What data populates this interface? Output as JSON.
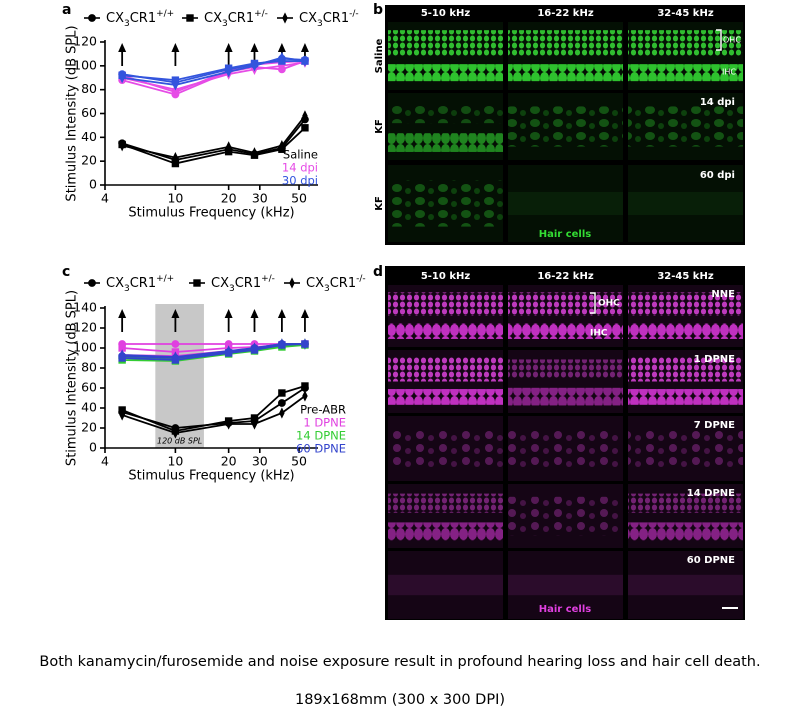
{
  "chart_data": [
    {
      "type": "line",
      "letter": "a",
      "xscale": "log",
      "xlabel": "Stimulus Frequency (kHz)",
      "ylabel": "Stimulus Intensity (dB SPL)",
      "xlim": [
        4,
        64
      ],
      "xticks": [
        4,
        10,
        20,
        30,
        50
      ],
      "ylim": [
        0,
        120
      ],
      "yticks": [
        0,
        20,
        40,
        60,
        80,
        100,
        120
      ],
      "x": [
        5,
        10,
        20,
        28,
        40,
        54
      ],
      "genotypes": [
        {
          "marker": "circle",
          "label": {
            "base": "CX",
            "sub": "3",
            "mid": "CR1",
            "sup": "+/+"
          }
        },
        {
          "marker": "square",
          "label": {
            "base": "CX",
            "sub": "3",
            "mid": "CR1",
            "sup": "+/-"
          }
        },
        {
          "marker": "diamond",
          "label": {
            "base": "CX",
            "sub": "3",
            "mid": "CR1",
            "sup": "-/-"
          }
        }
      ],
      "conditions": [
        {
          "label": "Saline",
          "color": "#000000"
        },
        {
          "label": "14 dpi",
          "color": "#e64ce6"
        },
        {
          "label": "30 dpi",
          "color": "#3355dd"
        }
      ],
      "series": [
        {
          "color": "#000000",
          "marker": "circle",
          "values": [
            35,
            21,
            30,
            26,
            31,
            55
          ]
        },
        {
          "color": "#000000",
          "marker": "square",
          "values": [
            34,
            18,
            28,
            25,
            30,
            48
          ]
        },
        {
          "color": "#000000",
          "marker": "diamond",
          "values": [
            33,
            23,
            32,
            27,
            33,
            58
          ]
        },
        {
          "color": "#e64ce6",
          "marker": "circle",
          "values": [
            88,
            76,
            95,
            99,
            97,
            104
          ]
        },
        {
          "color": "#e64ce6",
          "marker": "square",
          "values": [
            92,
            78,
            96,
            101,
            103,
            104
          ]
        },
        {
          "color": "#e64ce6",
          "marker": "diamond",
          "values": [
            90,
            80,
            93,
            97,
            100,
            103
          ]
        },
        {
          "color": "#3355dd",
          "marker": "circle",
          "values": [
            93,
            86,
            97,
            101,
            106,
            105
          ]
        },
        {
          "color": "#3355dd",
          "marker": "square",
          "values": [
            92,
            88,
            98,
            102,
            104,
            104
          ]
        },
        {
          "color": "#3355dd",
          "marker": "diamond",
          "values": [
            90,
            84,
            95,
            100,
            107,
            104
          ]
        }
      ]
    },
    {
      "type": "line",
      "letter": "c",
      "xscale": "log",
      "xlabel": "Stimulus Frequency (kHz)",
      "ylabel": "Stimulus Intensity (dB SPL)",
      "xlim": [
        4,
        64
      ],
      "xticks": [
        4,
        10,
        20,
        30,
        50
      ],
      "ylim": [
        0,
        140
      ],
      "yticks": [
        0,
        20,
        40,
        60,
        80,
        100,
        120,
        140
      ],
      "x": [
        5,
        10,
        20,
        28,
        40,
        54
      ],
      "shade": [
        7.7,
        14.5
      ],
      "shade_label": "120 dB SPL",
      "genotypes": [
        {
          "marker": "circle",
          "label": {
            "base": "CX",
            "sub": "3",
            "mid": "CR1",
            "sup": "+/+"
          }
        },
        {
          "marker": "square",
          "label": {
            "base": "CX",
            "sub": "3",
            "mid": "CR1",
            "sup": "+/-"
          }
        },
        {
          "marker": "diamond",
          "label": {
            "base": "CX",
            "sub": "3",
            "mid": "CR1",
            "sup": "-/-"
          }
        }
      ],
      "conditions": [
        {
          "label": "Pre-ABR",
          "color": "#000000"
        },
        {
          "label": "1 DPNE",
          "color": "#e040e0"
        },
        {
          "label": "14 DPNE",
          "color": "#33cc33"
        },
        {
          "label": "60 DPNE",
          "color": "#3344cc"
        }
      ],
      "series": [
        {
          "color": "#000000",
          "marker": "circle",
          "values": [
            36,
            20,
            25,
            27,
            45,
            60
          ]
        },
        {
          "color": "#000000",
          "marker": "square",
          "values": [
            38,
            17,
            27,
            30,
            55,
            62
          ]
        },
        {
          "color": "#000000",
          "marker": "diamond",
          "values": [
            33,
            15,
            24,
            24,
            35,
            52
          ]
        },
        {
          "color": "#e040e0",
          "marker": "circle",
          "values": [
            104,
            104,
            104,
            104,
            104,
            104
          ]
        },
        {
          "color": "#e040e0",
          "marker": "square",
          "values": [
            100,
            96,
            100,
            101,
            103,
            104
          ]
        },
        {
          "color": "#e040e0",
          "marker": "diamond",
          "values": [
            93,
            92,
            97,
            99,
            104,
            104
          ]
        },
        {
          "color": "#33cc33",
          "marker": "circle",
          "values": [
            90,
            88,
            95,
            98,
            102,
            104
          ]
        },
        {
          "color": "#33cc33",
          "marker": "square",
          "values": [
            88,
            87,
            94,
            97,
            101,
            103
          ]
        },
        {
          "color": "#33cc33",
          "marker": "diamond",
          "values": [
            91,
            89,
            96,
            99,
            104,
            104
          ]
        },
        {
          "color": "#3344cc",
          "marker": "circle",
          "values": [
            92,
            90,
            96,
            100,
            104,
            104
          ]
        },
        {
          "color": "#3344cc",
          "marker": "square",
          "values": [
            90,
            88,
            95,
            98,
            103,
            104
          ]
        },
        {
          "color": "#3344cc",
          "marker": "diamond",
          "values": [
            93,
            91,
            97,
            100,
            104,
            104
          ]
        }
      ]
    }
  ],
  "panel_b": {
    "letter": "b",
    "columns": [
      "5-10 kHz",
      "16-22 kHz",
      "32-45 kHz"
    ],
    "rows": [
      "Saline",
      "KF",
      "KF"
    ],
    "ohc": "OHC",
    "ihc": "IHC",
    "times": [
      "14 dpi",
      "60 dpi"
    ],
    "stain": "Hair cells"
  },
  "panel_d": {
    "letter": "d",
    "columns": [
      "5-10 kHz",
      "16-22 kHz",
      "32-45 kHz"
    ],
    "rows": [
      "NNE",
      "1 DPNE",
      "7 DPNE",
      "14 DPNE",
      "60 DPNE"
    ],
    "ohc": "OHC",
    "ihc": "IHC",
    "stain": "Hair cells"
  },
  "caption": "Both kanamycin/furosemide and noise exposure result in profound hearing loss and hair cell death.",
  "dimensions": "189x168mm (300 x 300 DPI)"
}
